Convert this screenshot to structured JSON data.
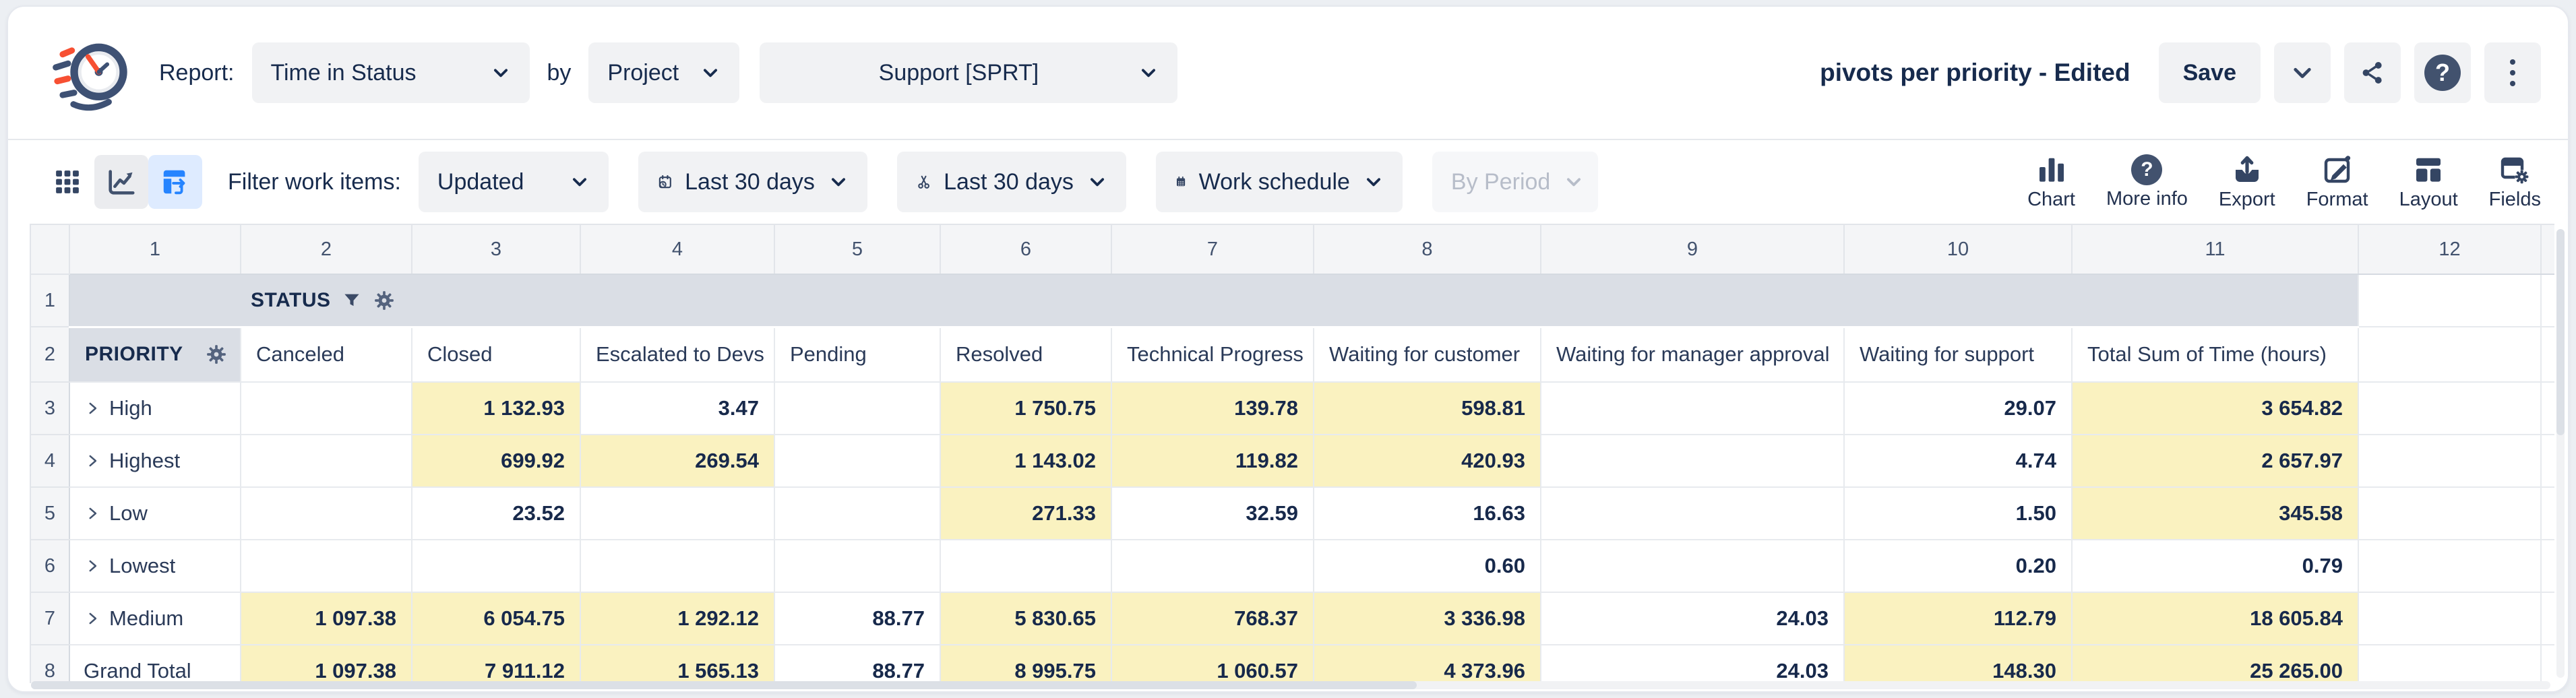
{
  "header": {
    "report_label": "Report:",
    "report_type": "Time in Status",
    "by_label": "by",
    "group_by": "Project",
    "project": "Support [SPRT]",
    "title": "pivots per priority - Edited",
    "save_label": "Save"
  },
  "toolbar": {
    "filter_label": "Filter work items:",
    "filter_field": "Updated",
    "date_range": "Last 30 days",
    "trim_range": "Last 30 days",
    "schedule": "Work schedule",
    "by_period": "By Period",
    "view_toggle_icons": [
      "grid-view-icon",
      "chart-view-icon",
      "pivot-view-icon"
    ],
    "selected_view": "pivot-view-icon",
    "actions": [
      {
        "icon": "bar-chart-icon",
        "label": "Chart"
      },
      {
        "icon": "question-icon",
        "label": "More info"
      },
      {
        "icon": "export-icon",
        "label": "Export"
      },
      {
        "icon": "format-pencil-icon",
        "label": "Format"
      },
      {
        "icon": "layout-icon",
        "label": "Layout"
      },
      {
        "icon": "fields-gear-icon",
        "label": "Fields"
      }
    ]
  },
  "table": {
    "column_numbers": [
      "1",
      "2",
      "3",
      "4",
      "5",
      "6",
      "7",
      "8",
      "9",
      "10",
      "11",
      "12"
    ],
    "header_row_nums": [
      "1",
      "2"
    ],
    "group_header": "STATUS",
    "group_header_icons": [
      "filter-funnel-icon",
      "gear-icon"
    ],
    "row_header": "PRIORITY",
    "columns": [
      "Canceled",
      "Closed",
      "Escalated to Devs",
      "Pending",
      "Resolved",
      "Technical Progress",
      "Waiting for customer",
      "Waiting for manager approval",
      "Waiting for support",
      "Total Sum of Time (hours)"
    ],
    "rows": [
      {
        "num": "3",
        "label": "High",
        "expandable": true,
        "values": [
          "",
          "1 132.93",
          "3.47",
          "",
          "1 750.75",
          "139.78",
          "598.81",
          "",
          "29.07",
          "3 654.82"
        ],
        "highlight": [
          false,
          true,
          false,
          false,
          true,
          true,
          true,
          false,
          false,
          true
        ]
      },
      {
        "num": "4",
        "label": "Highest",
        "expandable": true,
        "values": [
          "",
          "699.92",
          "269.54",
          "",
          "1 143.02",
          "119.82",
          "420.93",
          "",
          "4.74",
          "2 657.97"
        ],
        "highlight": [
          false,
          true,
          true,
          false,
          true,
          true,
          true,
          false,
          false,
          true
        ]
      },
      {
        "num": "5",
        "label": "Low",
        "expandable": true,
        "values": [
          "",
          "23.52",
          "",
          "",
          "271.33",
          "32.59",
          "16.63",
          "",
          "1.50",
          "345.58"
        ],
        "highlight": [
          false,
          false,
          false,
          false,
          true,
          false,
          false,
          false,
          false,
          true
        ]
      },
      {
        "num": "6",
        "label": "Lowest",
        "expandable": true,
        "values": [
          "",
          "",
          "",
          "",
          "",
          "",
          "0.60",
          "",
          "0.20",
          "0.79"
        ],
        "highlight": [
          false,
          false,
          false,
          false,
          false,
          false,
          false,
          false,
          false,
          false
        ]
      },
      {
        "num": "7",
        "label": "Medium",
        "expandable": true,
        "values": [
          "1 097.38",
          "6 054.75",
          "1 292.12",
          "88.77",
          "5 830.65",
          "768.37",
          "3 336.98",
          "24.03",
          "112.79",
          "18 605.84"
        ],
        "highlight": [
          true,
          true,
          true,
          false,
          true,
          true,
          true,
          false,
          true,
          true
        ]
      },
      {
        "num": "8",
        "label": "Grand Total",
        "expandable": false,
        "values": [
          "1 097.38",
          "7 911.12",
          "1 565.13",
          "88.77",
          "8 995.75",
          "1 060.57",
          "4 373.96",
          "24.03",
          "148.30",
          "25 265.00"
        ],
        "highlight": [
          true,
          true,
          true,
          false,
          true,
          true,
          true,
          false,
          true,
          true
        ]
      }
    ]
  },
  "colors": {
    "accent_blue": "#2684FF",
    "selected_view_bg": "#DEEBFF",
    "highlight_yellow": "#FAF2C0",
    "band_grey": "#DADEE5",
    "navy_text": "#172B4D",
    "logo_orange": "#F75033",
    "logo_navy": "#3E5174"
  }
}
